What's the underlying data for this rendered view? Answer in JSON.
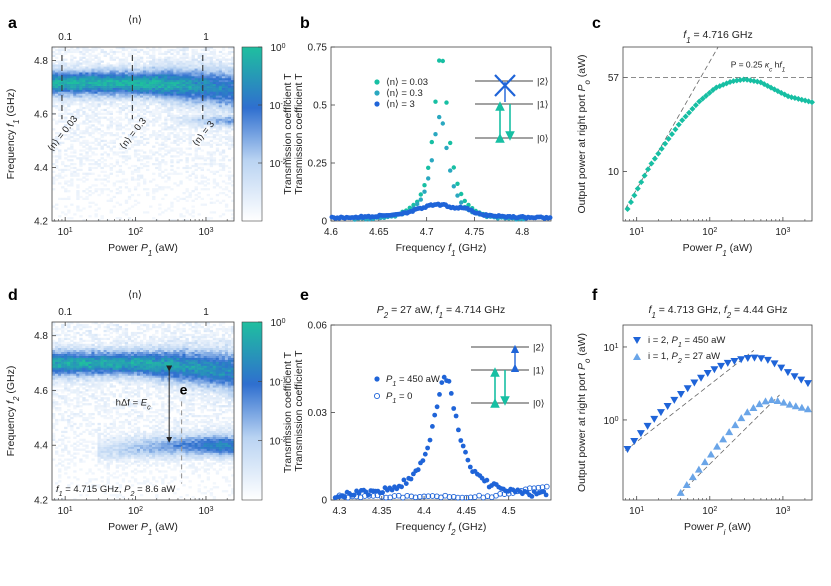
{
  "colors": {
    "teal": "#17bfa3",
    "blue": "#1f64d8",
    "light_blue": "#6aa5e8",
    "cmap_low": "#ffffff",
    "cmap_mid": "#2f6fcf",
    "cmap_high": "#1fbf9f",
    "dashed": "#333333",
    "fit_line": "#666666"
  },
  "chart_data": [
    {
      "panel": "a",
      "type": "heatmap",
      "xlabel": "Power  P_1 (aW)",
      "ylabel": "Frequency  f_1 (GHz)",
      "top_axis_label": "⟨n⟩",
      "top_ticks": [
        {
          "label": "0.1",
          "at": 10
        },
        {
          "label": "1",
          "at": 1000
        }
      ],
      "xscale": "log",
      "xlim": [
        6.5,
        2500
      ],
      "ylim": [
        4.2,
        4.85
      ],
      "x_ticks": [
        {
          "v": 10,
          "m": "1"
        },
        {
          "v": 100,
          "m": "2"
        },
        {
          "v": 1000,
          "m": "3"
        }
      ],
      "y_ticks": [
        4.2,
        4.4,
        4.6,
        4.8
      ],
      "resonance": {
        "x": [
          6.5,
          50,
          200,
          500,
          1000,
          2500
        ],
        "y": [
          4.716,
          4.716,
          4.714,
          4.708,
          4.702,
          4.69
        ]
      },
      "dashed_lines": [
        {
          "x": 9,
          "label": "⟨n⟩ = 0.03"
        },
        {
          "x": 90,
          "label": "⟨n⟩ = 0.3"
        },
        {
          "x": 900,
          "label": "⟨n⟩ = 3"
        }
      ],
      "colorbar": {
        "label": "Transmission coefficient  T",
        "scale": "log",
        "range": [
          0.001,
          1
        ],
        "ticks": [
          {
            "v": 1,
            "m": "0"
          },
          {
            "v": 0.1,
            "m": "-1"
          },
          {
            "v": 0.01,
            "m": "-2"
          }
        ]
      }
    },
    {
      "panel": "b",
      "type": "scatter",
      "xlabel": "Frequency  f_1 (GHz)",
      "ylabel": "Transmission coefficient  T",
      "xlim": [
        4.6,
        4.83
      ],
      "ylim": [
        0,
        0.75
      ],
      "x_ticks": [
        "4.6",
        "4.65",
        "4.7",
        "4.75",
        "4.8"
      ],
      "y_ticks": [
        "0",
        "0.25",
        "0.5",
        "0.75"
      ],
      "series": [
        {
          "name": "⟨n⟩ = 0.03",
          "color": "#17bfa3",
          "center": 4.715,
          "peak": 0.72,
          "width": 0.009
        },
        {
          "name": "⟨n⟩ = 0.3",
          "color": "#2aa8c0",
          "center": 4.714,
          "peak": 0.45,
          "width": 0.01
        },
        {
          "name": "⟨n⟩ = 3",
          "color": "#1f64d8",
          "center": 4.712,
          "peak": 0.06,
          "width": 0.03
        }
      ],
      "levels": [
        "|2⟩",
        "|1⟩",
        "|0⟩"
      ]
    },
    {
      "panel": "c",
      "type": "scatter",
      "title": "f_1 = 4.716 GHz",
      "xlabel": "Power  P_1 (aW)",
      "ylabel": "Output power at right port  P_o (aW)",
      "xscale": "log",
      "yscale": "log",
      "xlim": [
        6.5,
        2500
      ],
      "ylim": [
        4,
        100
      ],
      "x_ticks": [
        {
          "v": 10,
          "m": "1"
        },
        {
          "v": 100,
          "m": "2"
        },
        {
          "v": 1000,
          "m": "3"
        }
      ],
      "y_ticks": [
        {
          "v": 10,
          "label": "10"
        },
        {
          "v": 57,
          "label": "57"
        }
      ],
      "annotation": "P = 0.25 κ_c hf_1",
      "data": {
        "x": [
          7.5,
          10,
          15,
          25,
          40,
          70,
          120,
          200,
          300,
          500,
          800,
          1200,
          2500
        ],
        "y": [
          5,
          7,
          11,
          17,
          25,
          36,
          47,
          53,
          55,
          52,
          45,
          40,
          36
        ]
      }
    },
    {
      "panel": "d",
      "type": "heatmap",
      "xlabel": "Power  P_1 (aW)",
      "ylabel": "Frequency  f_2 (GHz)",
      "top_axis_label": "⟨n⟩",
      "top_ticks": [
        {
          "label": "0.1",
          "at": 10
        },
        {
          "label": "1",
          "at": 1000
        }
      ],
      "xscale": "log",
      "xlim": [
        6.5,
        2500
      ],
      "ylim": [
        4.2,
        4.85
      ],
      "x_ticks": [
        {
          "v": 10,
          "m": "1"
        },
        {
          "v": 100,
          "m": "2"
        },
        {
          "v": 1000,
          "m": "3"
        }
      ],
      "y_ticks": [
        4.2,
        4.4,
        4.6,
        4.8
      ],
      "resonances": [
        {
          "x": [
            6.5,
            100,
            500,
            1000,
            2500
          ],
          "y": [
            4.7,
            4.7,
            4.69,
            4.68,
            4.67
          ]
        },
        {
          "x": [
            30,
            100,
            500,
            1000,
            2500
          ],
          "y": [
            4.38,
            4.39,
            4.4,
            4.4,
            4.4
          ]
        }
      ],
      "arrow_label": "hΔf = E_c",
      "marker_label": "e",
      "marker_x": 450,
      "condition": "f_1 = 4.715 GHz, P_2 = 8.6 aW",
      "colorbar": {
        "label": "Transmission coefficient  T",
        "scale": "log",
        "range": [
          0.001,
          1
        ],
        "ticks": [
          {
            "v": 1,
            "m": "0"
          },
          {
            "v": 0.1,
            "m": "-1"
          },
          {
            "v": 0.01,
            "m": "-2"
          }
        ]
      }
    },
    {
      "panel": "e",
      "type": "scatter",
      "title": "P_2 = 27 aW,  f_1 = 4.714 GHz",
      "xlabel": "Frequency  f_2 (GHz)",
      "ylabel": "Transmission coefficient  T",
      "xlim": [
        4.29,
        4.55
      ],
      "ylim": [
        0,
        0.06
      ],
      "x_ticks": [
        "4.3",
        "4.35",
        "4.4",
        "4.45",
        "4.5"
      ],
      "y_ticks": [
        "0",
        "0.03",
        "0.06"
      ],
      "series": [
        {
          "name": "P_1 = 450 aW",
          "color": "#1f64d8",
          "filled": true,
          "center": 4.425,
          "peak": 0.041,
          "width": 0.018
        },
        {
          "name": "P_1 = 0",
          "color": "#1f64d8",
          "filled": false,
          "center": 4.45,
          "peak": 0.002,
          "width": 0.1
        }
      ],
      "levels": [
        "|2⟩",
        "|1⟩",
        "|0⟩"
      ]
    },
    {
      "panel": "f",
      "type": "scatter",
      "title": "f_1 = 4.713 GHz,  f_2 = 4.44 GHz",
      "xlabel": "Power  P_i (aW)",
      "ylabel": "Output power at right port  P_o (aW)",
      "xscale": "log",
      "yscale": "log",
      "xlim": [
        6.5,
        2500
      ],
      "ylim": [
        0.08,
        20
      ],
      "x_ticks": [
        {
          "v": 10,
          "m": "1"
        },
        {
          "v": 100,
          "m": "2"
        },
        {
          "v": 1000,
          "m": "3"
        }
      ],
      "y_ticks": [
        {
          "v": 1,
          "m": "0"
        },
        {
          "v": 10,
          "m": "1"
        }
      ],
      "series": [
        {
          "name": "i = 2,  P_1 = 450 aW",
          "color": "#1f64d8",
          "marker": "triangle-down",
          "x": [
            7.5,
            12,
            20,
            35,
            60,
            100,
            170,
            300,
            450,
            650,
            900,
            1300,
            2200
          ],
          "y": [
            0.4,
            0.7,
            1.2,
            2.0,
            3.2,
            4.6,
            6.0,
            7.0,
            7.2,
            6.6,
            5.4,
            4.2,
            3.2
          ]
        },
        {
          "name": "i = 1,  P_2 = 27 aW",
          "color": "#6aa5e8",
          "marker": "triangle-up",
          "x": [
            40,
            60,
            90,
            130,
            200,
            300,
            450,
            650,
            900,
            1300,
            2200
          ],
          "y": [
            0.1,
            0.17,
            0.28,
            0.45,
            0.75,
            1.2,
            1.6,
            1.9,
            1.8,
            1.6,
            1.4
          ]
        }
      ]
    }
  ]
}
